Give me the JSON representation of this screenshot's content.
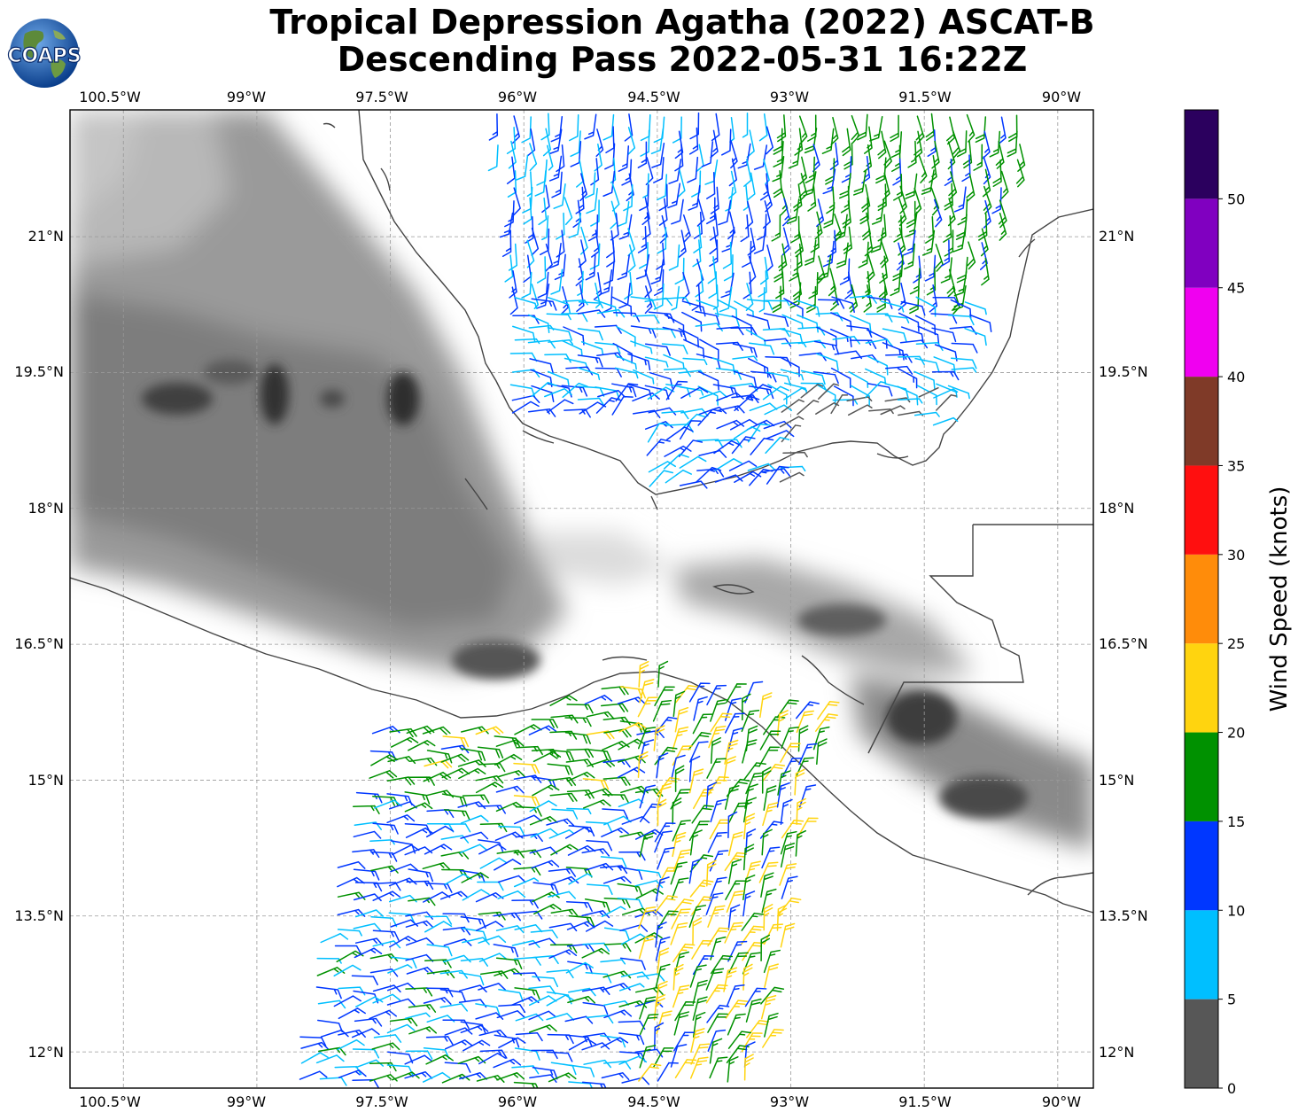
{
  "title": {
    "line1": "Tropical Depression Agatha (2022) ASCAT-B",
    "line2": "Descending Pass 2022-05-31 16:22Z"
  },
  "logo": {
    "text": "COAPS",
    "icon": "globe-icon"
  },
  "map": {
    "lon_ticks": [
      "100.5°W",
      "99°W",
      "97.5°W",
      "96°W",
      "94.5°W",
      "93°W",
      "91.5°W",
      "90°W"
    ],
    "lat_ticks": [
      "21°N",
      "19.5°N",
      "18°N",
      "16.5°N",
      "15°N",
      "13.5°N",
      "12°N"
    ],
    "lon_range": [
      -101.1,
      -89.6
    ],
    "lat_range": [
      11.6,
      22.4
    ],
    "gridlines": true
  },
  "colorbar": {
    "label": "Wind Speed (knots)",
    "tick_labels": [
      "0",
      "5",
      "10",
      "15",
      "20",
      "25",
      "30",
      "35",
      "40",
      "45",
      "50"
    ],
    "bins": [
      {
        "from": 0,
        "to": 5,
        "color": "#575757"
      },
      {
        "from": 5,
        "to": 10,
        "color": "#00bfff"
      },
      {
        "from": 10,
        "to": 15,
        "color": "#0037ff"
      },
      {
        "from": 15,
        "to": 20,
        "color": "#009100"
      },
      {
        "from": 20,
        "to": 25,
        "color": "#ffd40f"
      },
      {
        "from": 25,
        "to": 30,
        "color": "#ff8c0a"
      },
      {
        "from": 30,
        "to": 35,
        "color": "#ff0f0f"
      },
      {
        "from": 35,
        "to": 40,
        "color": "#7f3a28"
      },
      {
        "from": 40,
        "to": 45,
        "color": "#f000f0"
      },
      {
        "from": 45,
        "to": 50,
        "color": "#8000c0"
      },
      {
        "from": 50,
        "to": 55,
        "color": "#2b005e"
      }
    ]
  }
}
